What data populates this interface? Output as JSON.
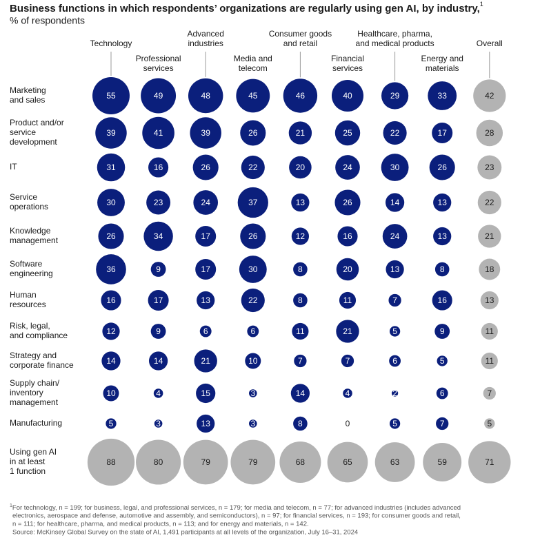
{
  "chart_data": {
    "type": "bubble",
    "title": "Business functions in which respondents’ organizations are regularly using gen AI, by industry,",
    "title_note": "1",
    "subtitle": "% of respondents",
    "columns": [
      [
        "Technology"
      ],
      [
        "Professional",
        "services"
      ],
      [
        "Advanced",
        "industries"
      ],
      [
        "Media and",
        "telecom"
      ],
      [
        "Consumer goods",
        "and retail"
      ],
      [
        "Financial",
        "services"
      ],
      [
        "Healthcare, pharma,",
        "and medical products"
      ],
      [
        "Energy and",
        "materials"
      ],
      [
        "Overall"
      ]
    ],
    "rows": [
      [
        "Marketing",
        "and sales"
      ],
      [
        "Product and/or",
        "service",
        "development"
      ],
      [
        "IT"
      ],
      [
        "Service",
        "operations"
      ],
      [
        "Knowledge",
        "management"
      ],
      [
        "Software",
        "engineering"
      ],
      [
        "Human",
        "resources"
      ],
      [
        "Risk, legal,",
        "and compliance"
      ],
      [
        "Strategy and",
        "corporate finance"
      ],
      [
        "Supply chain/",
        "inventory",
        "management"
      ],
      [
        "Manufacturing"
      ],
      [
        "Using gen AI",
        "in at least",
        "1 function"
      ]
    ],
    "values": [
      [
        55,
        49,
        48,
        45,
        46,
        40,
        29,
        33,
        42
      ],
      [
        39,
        41,
        39,
        26,
        21,
        25,
        22,
        17,
        28
      ],
      [
        31,
        16,
        26,
        22,
        20,
        24,
        30,
        26,
        23
      ],
      [
        30,
        23,
        24,
        37,
        13,
        26,
        14,
        13,
        22
      ],
      [
        26,
        34,
        17,
        26,
        12,
        16,
        24,
        13,
        21
      ],
      [
        36,
        9,
        17,
        30,
        8,
        20,
        13,
        8,
        18
      ],
      [
        16,
        17,
        13,
        22,
        8,
        11,
        7,
        16,
        13
      ],
      [
        12,
        9,
        6,
        6,
        11,
        21,
        5,
        9,
        11
      ],
      [
        14,
        14,
        21,
        10,
        7,
        7,
        6,
        5,
        11
      ],
      [
        10,
        4,
        15,
        3,
        14,
        4,
        2,
        6,
        7
      ],
      [
        5,
        3,
        13,
        3,
        8,
        0,
        5,
        7,
        5
      ],
      [
        88,
        80,
        79,
        79,
        68,
        65,
        63,
        59,
        71
      ]
    ],
    "color": "#0b1f7c",
    "total_color": "#b3b3b3",
    "footnote_marker": "1",
    "footnote": [
      "For technology, n = 199; for business, legal, and professional services, n = 179; for media and telecom, n = 77; for advanced industries (includes advanced",
      "electronics, aerospace and defense, automotive and assembly, and semiconductors), n = 97; for financial services, n = 193; for consumer goods and retail,",
      "n = 111; for healthcare, pharma, and medical products, n = 113; and for energy and materials, n = 142."
    ],
    "source": "Source: McKinsey Global Survey on the state of AI, 1,491 participants at all levels of the organization, July 16–31, 2024"
  }
}
